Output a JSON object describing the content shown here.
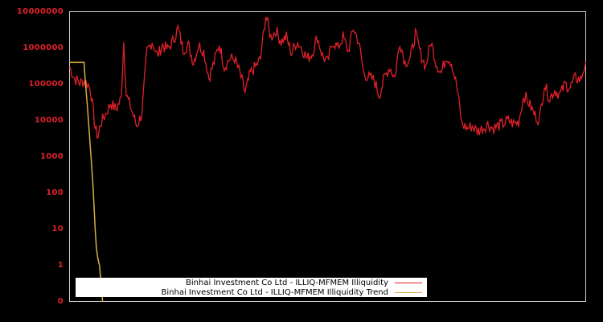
{
  "chart_data": {
    "type": "line",
    "title": "",
    "xlabel": "",
    "ylabel": "",
    "yscale": "log",
    "y_tick_labels": [
      "10000000",
      "1000000",
      "100000",
      "10000",
      "1000",
      "100",
      "10",
      "1",
      "0"
    ],
    "ylim": [
      0.1,
      10000000
    ],
    "grid": false,
    "legend_position": "lower center",
    "background": "#000000",
    "axis_color": "#cccccc",
    "tick_label_color": "#e0202a",
    "series": [
      {
        "name": "Binhai Investment Co Ltd - ILLIQ-MFMEM Illiquidity",
        "color": "#e0202a",
        "x_fraction": [
          0.0,
          0.01,
          0.02,
          0.03,
          0.04,
          0.05,
          0.055,
          0.06,
          0.07,
          0.08,
          0.09,
          0.1,
          0.105,
          0.11,
          0.12,
          0.13,
          0.14,
          0.15,
          0.16,
          0.17,
          0.18,
          0.19,
          0.2,
          0.21,
          0.22,
          0.23,
          0.24,
          0.25,
          0.26,
          0.27,
          0.28,
          0.29,
          0.3,
          0.31,
          0.32,
          0.33,
          0.34,
          0.345,
          0.35,
          0.36,
          0.37,
          0.38,
          0.39,
          0.4,
          0.41,
          0.42,
          0.43,
          0.44,
          0.45,
          0.46,
          0.47,
          0.48,
          0.49,
          0.5,
          0.51,
          0.52,
          0.53,
          0.54,
          0.55,
          0.56,
          0.57,
          0.58,
          0.59,
          0.6,
          0.61,
          0.62,
          0.63,
          0.64,
          0.65,
          0.66,
          0.67,
          0.68,
          0.69,
          0.7,
          0.71,
          0.72,
          0.73,
          0.74,
          0.75,
          0.76,
          0.77,
          0.78,
          0.79,
          0.8,
          0.81,
          0.82,
          0.83,
          0.84,
          0.85,
          0.86,
          0.87,
          0.88,
          0.89,
          0.9,
          0.91,
          0.92,
          0.93,
          0.94,
          0.95,
          0.96,
          0.97,
          0.98,
          0.99,
          1.0
        ],
        "values": [
          300000,
          140000,
          110000,
          120000,
          80000,
          6000,
          3500,
          8000,
          15000,
          30000,
          20000,
          40000,
          1500000,
          50000,
          20000,
          7000,
          15000,
          800000,
          1500000,
          600000,
          1200000,
          900000,
          1500000,
          3500000,
          900000,
          1200000,
          400000,
          1200000,
          800000,
          150000,
          400000,
          1300000,
          300000,
          500000,
          500000,
          200000,
          60000,
          100000,
          200000,
          300000,
          500000,
          8000000,
          2000000,
          3000000,
          1500000,
          2000000,
          700000,
          1500000,
          1000000,
          500000,
          700000,
          2000000,
          600000,
          400000,
          1500000,
          1000000,
          2000000,
          800000,
          3500000,
          1500000,
          200000,
          150000,
          130000,
          50000,
          150000,
          300000,
          150000,
          1500000,
          400000,
          500000,
          2500000,
          700000,
          300000,
          1500000,
          400000,
          200000,
          600000,
          400000,
          90000,
          8000,
          6000,
          7000,
          5000,
          6000,
          8000,
          6000,
          7000,
          8000,
          10000,
          8000,
          9000,
          50000,
          30000,
          15000,
          10000,
          100000,
          40000,
          70000,
          50000,
          100000,
          80000,
          150000,
          130000,
          400000
        ]
      },
      {
        "name": "Binhai Investment Co Ltd - ILLIQ-MFMEM Illiquidity Trend",
        "color": "#d4b040",
        "x_fraction": [
          0.0,
          0.028,
          0.03,
          0.035,
          0.04,
          0.045,
          0.048,
          0.05,
          0.052,
          0.055,
          0.058,
          0.06,
          0.062,
          0.064
        ],
        "values": [
          400000,
          400000,
          150000,
          20000,
          2000,
          200,
          30,
          8,
          3,
          1.5,
          1,
          0.5,
          0.2,
          0.1
        ]
      }
    ]
  },
  "legend": {
    "items": [
      {
        "label": "Binhai Investment Co Ltd - ILLIQ-MFMEM Illiquidity",
        "color": "#e0202a"
      },
      {
        "label": "Binhai Investment Co Ltd - ILLIQ-MFMEM Illiquidity Trend",
        "color": "#d4b040"
      }
    ]
  }
}
